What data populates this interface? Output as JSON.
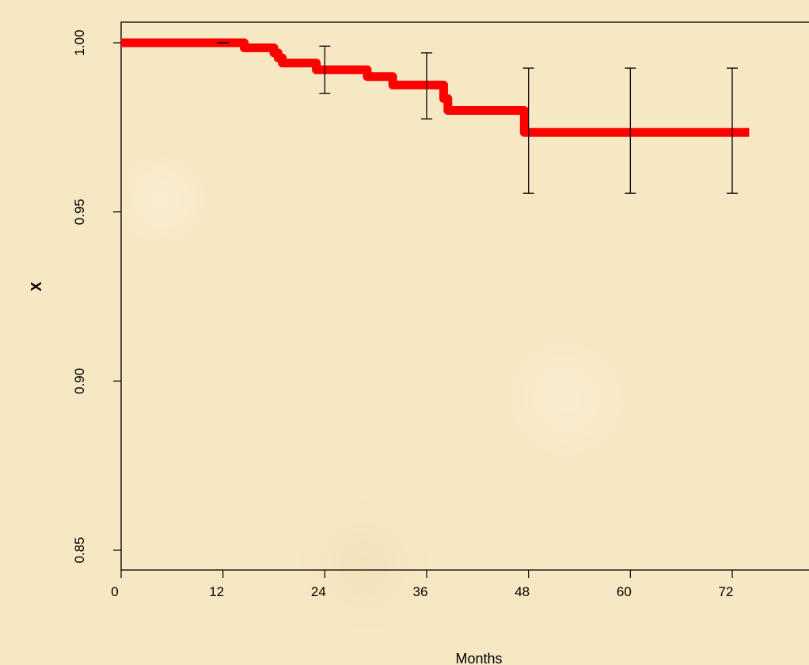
{
  "chart_data": {
    "type": "line",
    "xlabel": "Months",
    "ylabel": "X",
    "xlim": [
      0,
      78
    ],
    "ylim": [
      0.844,
      1.006
    ],
    "x_ticks": [
      0,
      12,
      24,
      36,
      48,
      60,
      72
    ],
    "y_ticks": [
      0.85,
      0.9,
      0.95,
      1.0
    ],
    "x_tick_labels": [
      "0",
      "12",
      "24",
      "36",
      "48",
      "60",
      "72"
    ],
    "y_tick_labels": [
      "0.85",
      "0.90",
      "0.95",
      "1.00"
    ],
    "series": [
      {
        "color": "#ff0000",
        "step": true,
        "x": [
          0,
          14,
          14.5,
          17.5,
          18,
          18.5,
          19,
          23,
          29,
          32,
          38,
          38.5,
          47.5,
          74
        ],
        "y": [
          1.0,
          1.0,
          0.9985,
          0.9985,
          0.997,
          0.9955,
          0.994,
          0.992,
          0.99,
          0.9875,
          0.9835,
          0.98,
          0.9735,
          0.9735
        ]
      }
    ],
    "error_bars": [
      {
        "x": 24,
        "y": 0.992,
        "lower": 0.985,
        "upper": 0.999
      },
      {
        "x": 36,
        "y": 0.987,
        "lower": 0.9775,
        "upper": 0.997
      },
      {
        "x": 48,
        "y": 0.9735,
        "lower": 0.9555,
        "upper": 0.9925
      },
      {
        "x": 60,
        "y": 0.9735,
        "lower": 0.9555,
        "upper": 0.9925
      },
      {
        "x": 72,
        "y": 0.9735,
        "lower": 0.9555,
        "upper": 0.9925
      }
    ],
    "censor_marks": [
      {
        "x": 12,
        "y": 1.0
      }
    ],
    "grid": false,
    "colors": {
      "line": "#ff0000",
      "axes": "#000000",
      "background": "#f7e8c4"
    }
  }
}
